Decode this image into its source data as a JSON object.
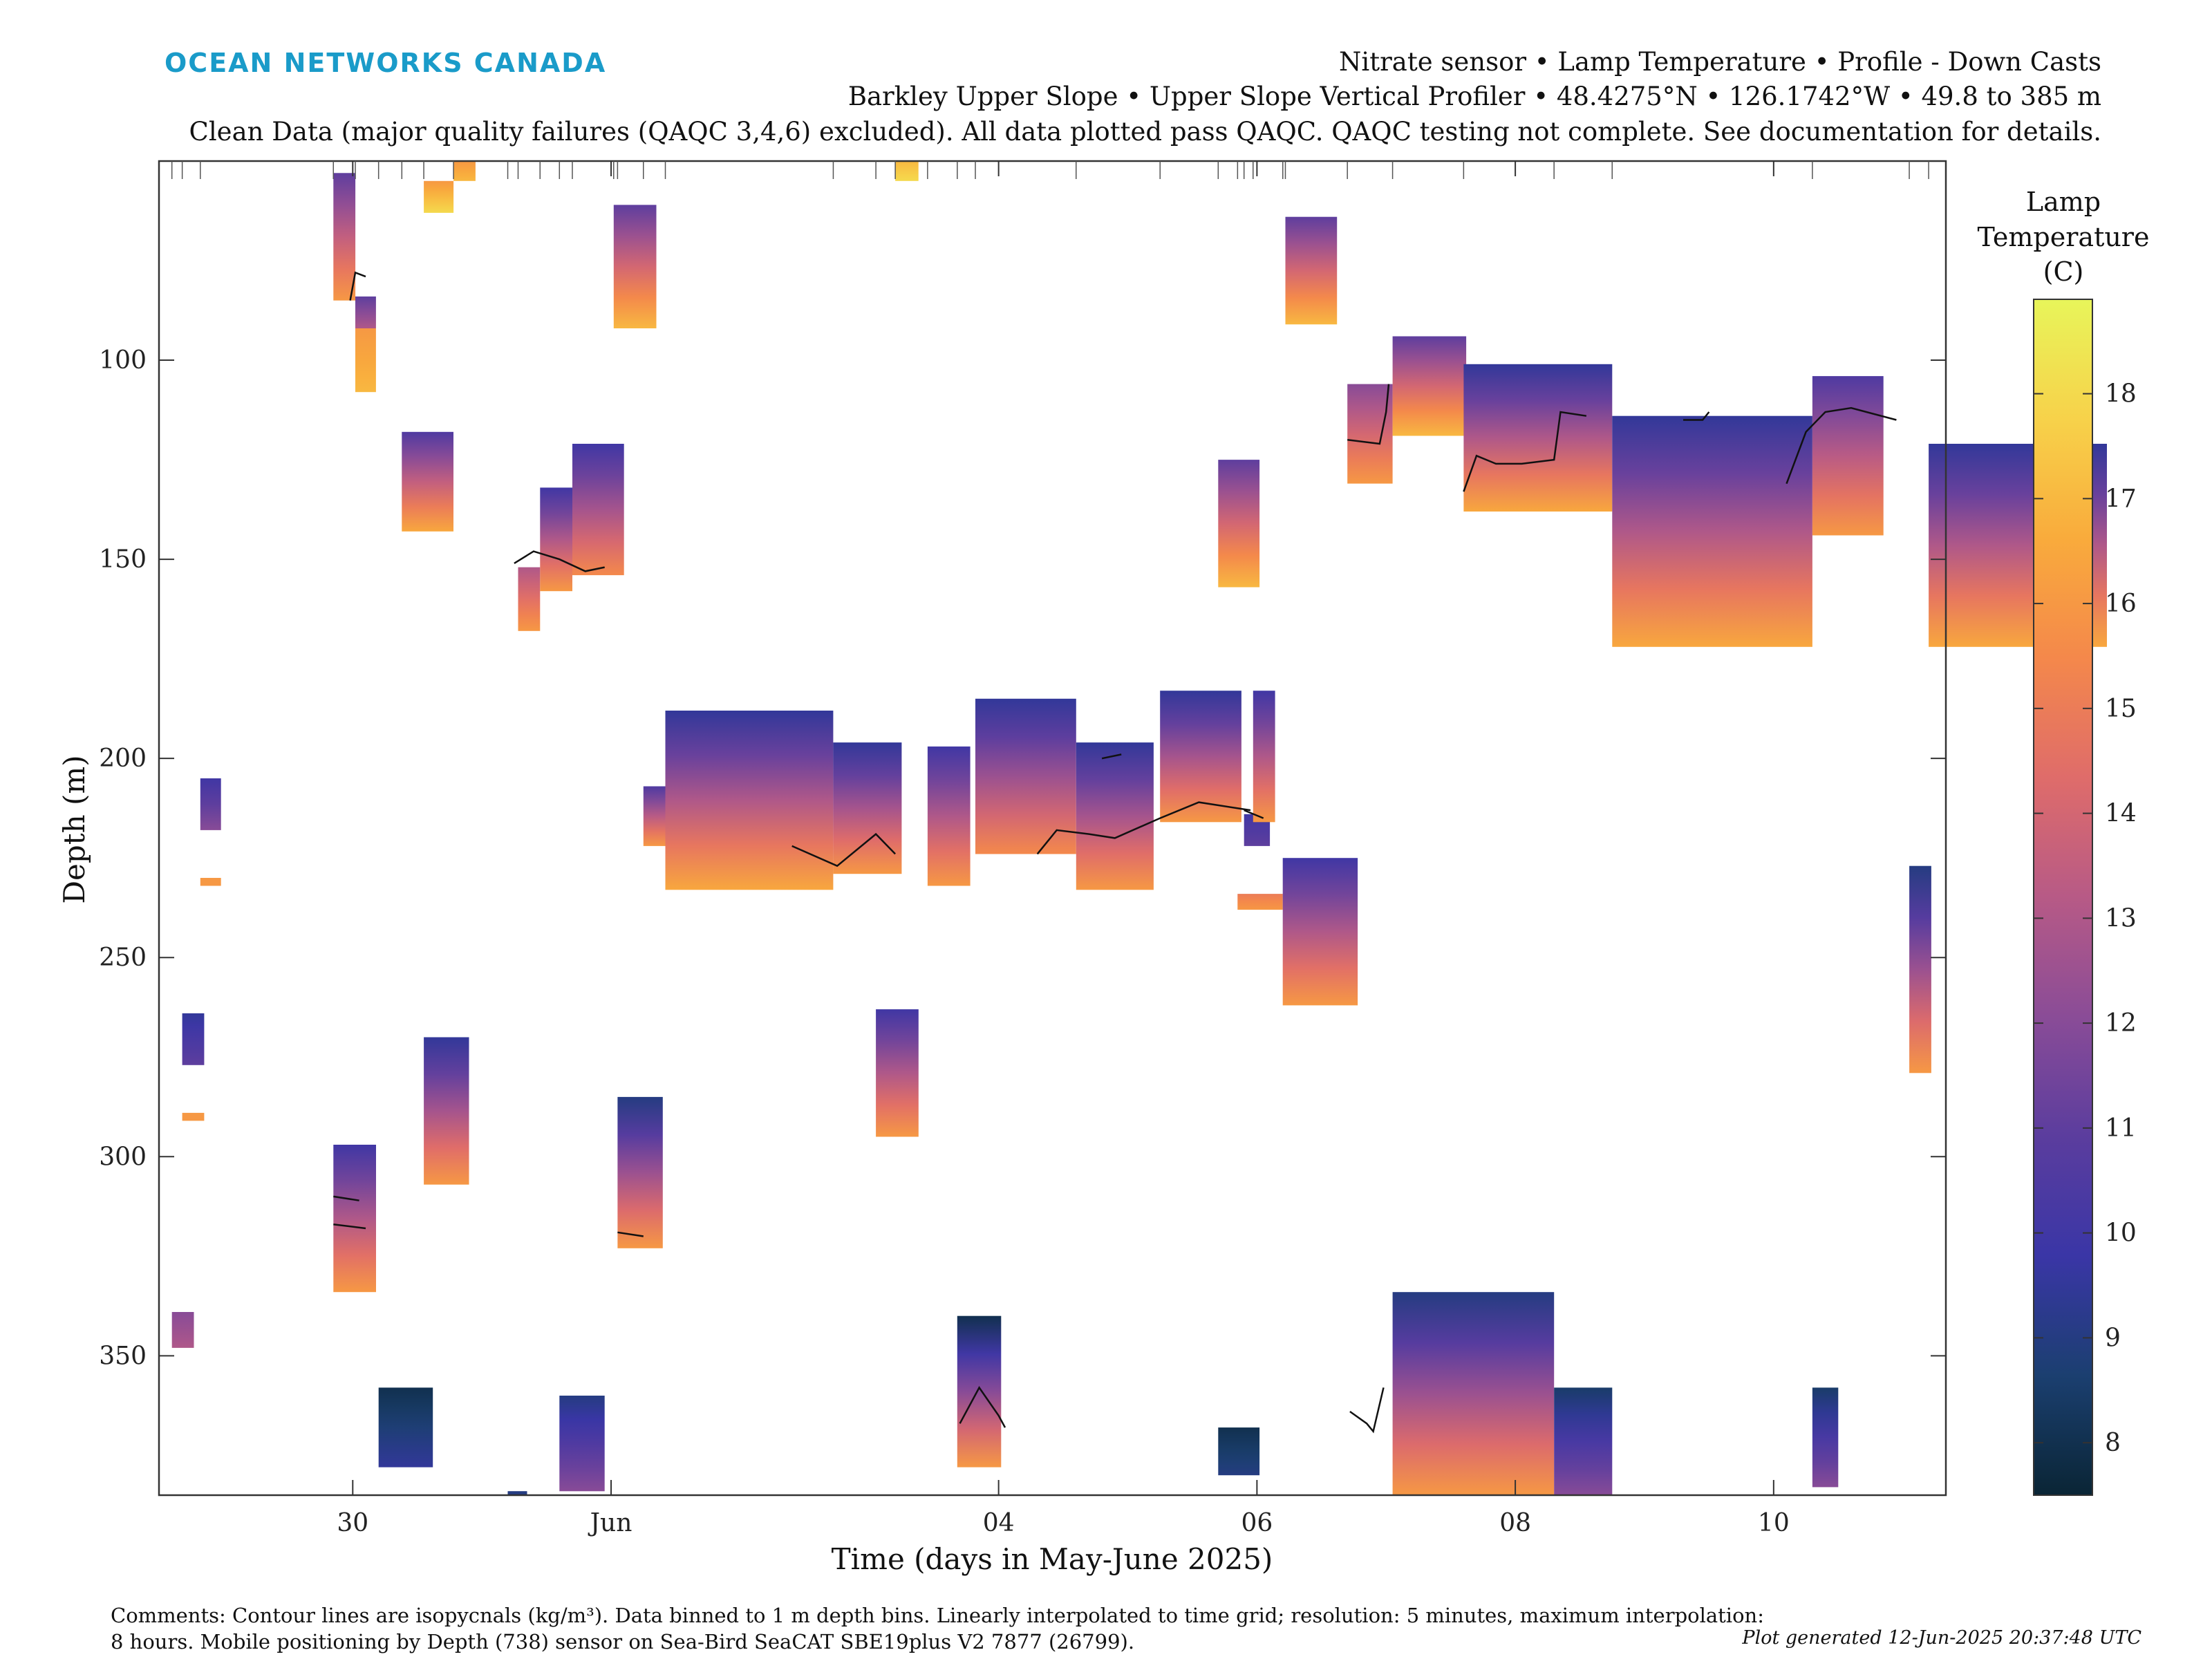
{
  "logo": {
    "text": "OCEAN NETWORKS CANADA"
  },
  "header": {
    "line1": "Nitrate sensor • Lamp Temperature • Profile - Down Casts",
    "line2": "Barkley Upper Slope • Upper Slope Vertical Profiler • 48.4275°N • 126.1742°W • 49.8 to 385 m",
    "line3": "Clean Data (major quality failures (QAQC 3,4,6) excluded). All data plotted pass QAQC. QAQC testing not complete. See documentation for details."
  },
  "comments": {
    "line1": "Comments: Contour lines are isopycnals (kg/m³). Data binned to 1 m depth bins. Linearly interpolated to time grid; resolution: 5 minutes, maximum interpolation:",
    "line2": "8 hours. Mobile positioning by Depth (738) sensor on Sea-Bird SeaCAT SBE19plus V2 7877 (26799)."
  },
  "generated": "Plot generated 12-Jun-2025 20:37:48 UTC",
  "chart_data": {
    "type": "heatmap",
    "xlabel": "Time (days in May-June 2025)",
    "ylabel": "Depth (m)",
    "x_range": [
      "2025-05-28T12:00",
      "2025-06-11T08:00"
    ],
    "xticks": [
      {
        "label": "30",
        "date": "2025-05-30"
      },
      {
        "label": "Jun",
        "date": "2025-06-01"
      },
      {
        "label": "04",
        "date": "2025-06-04"
      },
      {
        "label": "06",
        "date": "2025-06-06"
      },
      {
        "label": "08",
        "date": "2025-06-08"
      },
      {
        "label": "10",
        "date": "2025-06-10"
      }
    ],
    "y_range": [
      50,
      385
    ],
    "y_reversed": true,
    "yticks": [
      100,
      150,
      200,
      250,
      300,
      350
    ],
    "colorbar": {
      "title": [
        "Lamp",
        "Temperature",
        "(C)"
      ],
      "range": [
        7.5,
        18.9
      ],
      "ticks": [
        8,
        9,
        10,
        11,
        12,
        13,
        14,
        15,
        16,
        17,
        18
      ],
      "colormap": [
        "#0a2535",
        "#1b3f70",
        "#3a36a6",
        "#5b3d9e",
        "#8a4c97",
        "#b75a86",
        "#df6c6a",
        "#f4884b",
        "#f9ab3c",
        "#f7d24a",
        "#e8f55a"
      ]
    },
    "cells": [
      {
        "t0": 29.85,
        "t1": 30.02,
        "z0": 53,
        "z1": 85,
        "vtop": 11,
        "vbot": 16
      },
      {
        "t0": 30.02,
        "t1": 30.18,
        "z0": 84,
        "z1": 92,
        "vtop": 11,
        "vbot": 13
      },
      {
        "t0": 30.02,
        "t1": 30.18,
        "z0": 92,
        "z1": 108,
        "vtop": 16,
        "vbot": 17
      },
      {
        "t0": 30.38,
        "t1": 30.78,
        "z0": 118,
        "z1": 143,
        "vtop": 10.5,
        "vbot": 16.5
      },
      {
        "t0": 30.55,
        "t1": 30.78,
        "z0": 55,
        "z1": 63,
        "vtop": 16,
        "vbot": 18
      },
      {
        "t0": 30.78,
        "t1": 30.95,
        "z0": 50,
        "z1": 55,
        "vtop": 16,
        "vbot": 17
      },
      {
        "t0": 31.28,
        "t1": 31.45,
        "z0": 152,
        "z1": 168,
        "vtop": 13,
        "vbot": 16
      },
      {
        "t0": 31.45,
        "t1": 31.7,
        "z0": 132,
        "z1": 158,
        "vtop": 10,
        "vbot": 16
      },
      {
        "t0": 31.7,
        "t1": 32.1,
        "z0": 121,
        "z1": 154,
        "vtop": 10,
        "vbot": 15.5
      },
      {
        "t0": 32.02,
        "t1": 32.35,
        "z0": 61,
        "z1": 92,
        "vtop": 11,
        "vbot": 17
      },
      {
        "t0": 32.25,
        "t1": 32.88,
        "z0": 207,
        "z1": 222,
        "vtop": 10.5,
        "vbot": 16
      },
      {
        "t0": 32.42,
        "t1": 33.72,
        "z0": 188,
        "z1": 233,
        "vtop": 9.5,
        "vbot": 16.5
      },
      {
        "t0": 33.72,
        "t1": 34.25,
        "z0": 196,
        "z1": 229,
        "vtop": 9.5,
        "vbot": 16
      },
      {
        "t0": 34.45,
        "t1": 34.78,
        "z0": 197,
        "z1": 232,
        "vtop": 10,
        "vbot": 16
      },
      {
        "t0": 34.2,
        "t1": 34.38,
        "z0": 50,
        "z1": 55,
        "vtop": 17,
        "vbot": 18
      },
      {
        "t0": 34.05,
        "t1": 34.38,
        "z0": 263,
        "z1": 295,
        "vtop": 10,
        "vbot": 16
      },
      {
        "t0": 34.82,
        "t1": 35.6,
        "z0": 185,
        "z1": 224,
        "vtop": 9.5,
        "vbot": 15.5
      },
      {
        "t0": 35.6,
        "t1": 36.2,
        "z0": 196,
        "z1": 233,
        "vtop": 9.5,
        "vbot": 16
      },
      {
        "t0": 36.25,
        "t1": 36.88,
        "z0": 183,
        "z1": 216,
        "vtop": 9.5,
        "vbot": 16
      },
      {
        "t0": 36.9,
        "t1": 37.1,
        "z0": 214,
        "z1": 222,
        "vtop": 10,
        "vbot": 11
      },
      {
        "t0": 36.85,
        "t1": 37.2,
        "z0": 234,
        "z1": 238,
        "vtop": 15,
        "vbot": 16
      },
      {
        "t0": 36.7,
        "t1": 37.02,
        "z0": 125,
        "z1": 157,
        "vtop": 11,
        "vbot": 17
      },
      {
        "t0": 36.97,
        "t1": 37.14,
        "z0": 183,
        "z1": 216,
        "vtop": 10,
        "vbot": 16
      },
      {
        "t0": 36.7,
        "t1": 37.02,
        "z0": 368,
        "z1": 380,
        "vtop": 8,
        "vbot": 9
      },
      {
        "t0": 37.22,
        "t1": 37.62,
        "z0": 64,
        "z1": 91,
        "vtop": 11,
        "vbot": 17
      },
      {
        "t0": 37.2,
        "t1": 37.78,
        "z0": 225,
        "z1": 262,
        "vtop": 10,
        "vbot": 16
      },
      {
        "t0": 37.7,
        "t1": 38.05,
        "z0": 106,
        "z1": 131,
        "vtop": 12,
        "vbot": 16
      },
      {
        "t0": 38.05,
        "t1": 38.62,
        "z0": 94,
        "z1": 119,
        "vtop": 11,
        "vbot": 17
      },
      {
        "t0": 38.6,
        "t1": 39.75,
        "z0": 101,
        "z1": 138,
        "vtop": 9.5,
        "vbot": 16.5
      },
      {
        "t0": 38.05,
        "t1": 39.3,
        "z0": 334,
        "z1": 385,
        "vtop": 9,
        "vbot": 16
      },
      {
        "t0": 39.3,
        "t1": 39.75,
        "z0": 358,
        "z1": 385,
        "vtop": 8.5,
        "vbot": 12
      },
      {
        "t0": 39.75,
        "t1": 41.3,
        "z0": 114,
        "z1": 172,
        "vtop": 9.5,
        "vbot": 16.5
      },
      {
        "t0": 41.3,
        "t1": 41.85,
        "z0": 104,
        "z1": 144,
        "vtop": 10.5,
        "vbot": 16
      },
      {
        "t0": 41.3,
        "t1": 41.5,
        "z0": 358,
        "z1": 383,
        "vtop": 8.5,
        "vbot": 12
      },
      {
        "t0": 42.05,
        "t1": 42.22,
        "z0": 227,
        "z1": 279,
        "vtop": 9,
        "vbot": 16
      },
      {
        "t0": 42.2,
        "t1": 43.58,
        "z0": 121,
        "z1": 172,
        "vtop": 9.5,
        "vbot": 16.5
      },
      {
        "t0": 28.82,
        "t1": 28.98,
        "z0": 205,
        "z1": 218,
        "vtop": 10,
        "vbot": 12
      },
      {
        "t0": 28.82,
        "t1": 28.98,
        "z0": 230,
        "z1": 232,
        "vtop": 16,
        "vbot": 16
      },
      {
        "t0": 28.68,
        "t1": 28.85,
        "z0": 264,
        "z1": 277,
        "vtop": 9.5,
        "vbot": 11
      },
      {
        "t0": 28.68,
        "t1": 28.85,
        "z0": 289,
        "z1": 291,
        "vtop": 16,
        "vbot": 16
      },
      {
        "t0": 28.6,
        "t1": 28.77,
        "z0": 339,
        "z1": 348,
        "vtop": 12,
        "vbot": 13
      },
      {
        "t0": 29.85,
        "t1": 30.18,
        "z0": 297,
        "z1": 334,
        "vtop": 10,
        "vbot": 16
      },
      {
        "t0": 30.55,
        "t1": 30.9,
        "z0": 270,
        "z1": 307,
        "vtop": 9.5,
        "vbot": 16
      },
      {
        "t0": 30.2,
        "t1": 30.62,
        "z0": 358,
        "z1": 378,
        "vtop": 8,
        "vbot": 9.5
      },
      {
        "t0": 31.6,
        "t1": 31.95,
        "z0": 360,
        "z1": 384,
        "vtop": 9,
        "vbot": 12
      },
      {
        "t0": 31.2,
        "t1": 31.35,
        "z0": 384,
        "z1": 385,
        "vtop": 9,
        "vbot": 9
      },
      {
        "t0": 32.05,
        "t1": 32.4,
        "z0": 285,
        "z1": 323,
        "vtop": 9,
        "vbot": 16
      },
      {
        "t0": 34.68,
        "t1": 35.02,
        "z0": 340,
        "z1": 378,
        "vtop": 8,
        "vbot": 16
      }
    ],
    "contours": [
      [
        [
          29.98,
          85
        ],
        [
          30.02,
          78
        ],
        [
          30.1,
          79
        ]
      ],
      [
        [
          31.25,
          151
        ],
        [
          31.4,
          148
        ],
        [
          31.6,
          150
        ],
        [
          31.8,
          153
        ],
        [
          31.95,
          152
        ]
      ],
      [
        [
          33.4,
          222
        ],
        [
          33.75,
          227
        ],
        [
          34.05,
          219
        ],
        [
          34.2,
          224
        ]
      ],
      [
        [
          35.3,
          224
        ],
        [
          35.45,
          218
        ],
        [
          35.7,
          219
        ],
        [
          35.9,
          220
        ],
        [
          36.25,
          215
        ],
        [
          36.55,
          211
        ],
        [
          36.95,
          213
        ]
      ],
      [
        [
          36.9,
          213
        ],
        [
          37.05,
          215
        ]
      ],
      [
        [
          35.8,
          200
        ],
        [
          35.95,
          199
        ]
      ],
      [
        [
          37.7,
          120
        ],
        [
          37.95,
          121
        ],
        [
          38.0,
          113
        ],
        [
          38.02,
          106
        ]
      ],
      [
        [
          38.6,
          133
        ],
        [
          38.7,
          124
        ],
        [
          38.85,
          126
        ],
        [
          39.05,
          126
        ],
        [
          39.3,
          125
        ],
        [
          39.35,
          113
        ],
        [
          39.55,
          114
        ]
      ],
      [
        [
          40.3,
          115
        ],
        [
          40.45,
          115
        ],
        [
          40.5,
          113
        ]
      ],
      [
        [
          41.1,
          131
        ],
        [
          41.25,
          118
        ],
        [
          41.4,
          113
        ],
        [
          41.6,
          112
        ],
        [
          41.95,
          115
        ]
      ],
      [
        [
          29.85,
          310
        ],
        [
          30.05,
          311
        ]
      ],
      [
        [
          29.85,
          317
        ],
        [
          30.1,
          318
        ]
      ],
      [
        [
          32.05,
          319
        ],
        [
          32.25,
          320
        ]
      ],
      [
        [
          34.7,
          367
        ],
        [
          34.85,
          358
        ],
        [
          35.0,
          365
        ],
        [
          35.05,
          368
        ]
      ],
      [
        [
          37.72,
          364
        ],
        [
          37.85,
          367
        ],
        [
          37.9,
          369
        ],
        [
          37.98,
          358
        ]
      ]
    ]
  }
}
